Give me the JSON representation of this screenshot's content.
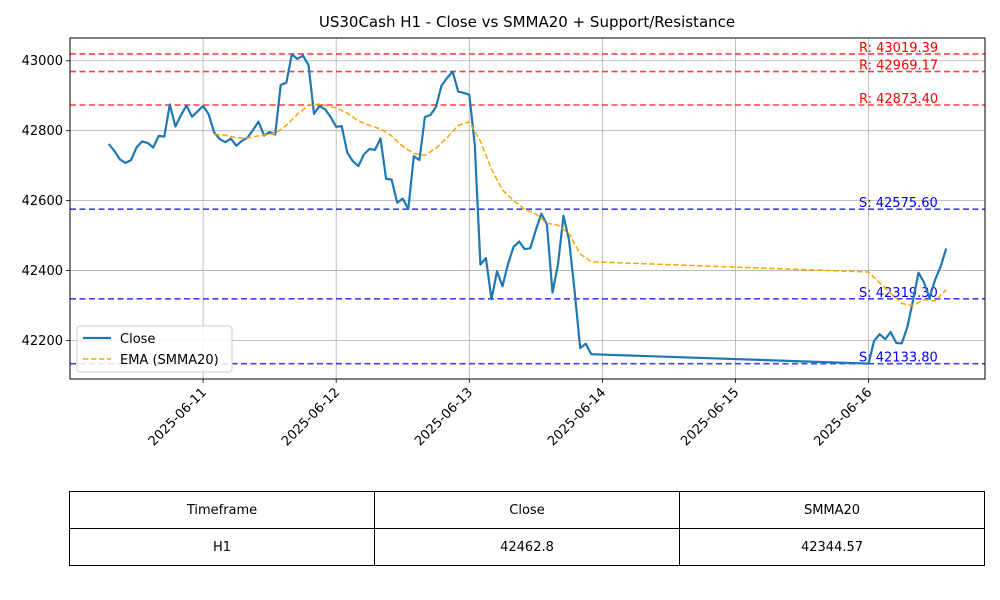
{
  "chart_data": {
    "type": "line",
    "title": "US30Cash H1 - Close vs SMMA20 + Support/Resistance",
    "xlabel": "",
    "ylabel": "",
    "x_ticks": [
      "2025-06-11",
      "2025-06-12",
      "2025-06-13",
      "2025-06-14",
      "2025-06-15",
      "2025-06-16"
    ],
    "y_ticks": [
      42200,
      42400,
      42600,
      42800,
      43000
    ],
    "xlim": [
      "2025-06-10 00:00",
      "2025-06-16 21:00"
    ],
    "ylim": [
      42090,
      43065
    ],
    "grid": true,
    "legend_position": "lower-left",
    "series": [
      {
        "name": "Close",
        "style": "solid",
        "color": "#1f77b4",
        "points": [
          [
            "2025-06-10 07:00",
            42762
          ],
          [
            "2025-06-10 08:00",
            42742
          ],
          [
            "2025-06-10 09:00",
            42718
          ],
          [
            "2025-06-10 10:00",
            42708
          ],
          [
            "2025-06-10 11:00",
            42716
          ],
          [
            "2025-06-10 12:00",
            42752
          ],
          [
            "2025-06-10 13:00",
            42769
          ],
          [
            "2025-06-10 14:00",
            42765
          ],
          [
            "2025-06-10 15:00",
            42752
          ],
          [
            "2025-06-10 16:00",
            42785
          ],
          [
            "2025-06-10 17:00",
            42783
          ],
          [
            "2025-06-10 18:00",
            42875
          ],
          [
            "2025-06-10 19:00",
            42812
          ],
          [
            "2025-06-10 20:00",
            42844
          ],
          [
            "2025-06-10 21:00",
            42872
          ],
          [
            "2025-06-10 22:00",
            42840
          ],
          [
            "2025-06-10 23:00",
            42855
          ],
          [
            "2025-06-11 00:00",
            42871
          ],
          [
            "2025-06-11 01:00",
            42847
          ],
          [
            "2025-06-11 02:00",
            42795
          ],
          [
            "2025-06-11 03:00",
            42776
          ],
          [
            "2025-06-11 04:00",
            42767
          ],
          [
            "2025-06-11 05:00",
            42777
          ],
          [
            "2025-06-11 06:00",
            42757
          ],
          [
            "2025-06-11 07:00",
            42771
          ],
          [
            "2025-06-11 08:00",
            42780
          ],
          [
            "2025-06-11 09:00",
            42802
          ],
          [
            "2025-06-11 10:00",
            42826
          ],
          [
            "2025-06-11 11:00",
            42786
          ],
          [
            "2025-06-11 12:00",
            42796
          ],
          [
            "2025-06-11 13:00",
            42789
          ],
          [
            "2025-06-11 14:00",
            42931
          ],
          [
            "2025-06-11 15:00",
            42937
          ],
          [
            "2025-06-11 16:00",
            43018
          ],
          [
            "2025-06-11 17:00",
            43005
          ],
          [
            "2025-06-11 18:00",
            43015
          ],
          [
            "2025-06-11 19:00",
            42988
          ],
          [
            "2025-06-11 20:00",
            42848
          ],
          [
            "2025-06-11 21:00",
            42871
          ],
          [
            "2025-06-11 22:00",
            42861
          ],
          [
            "2025-06-11 23:00",
            42839
          ],
          [
            "2025-06-12 00:00",
            42811
          ],
          [
            "2025-06-12 01:00",
            42813
          ],
          [
            "2025-06-12 02:00",
            42737
          ],
          [
            "2025-06-12 03:00",
            42713
          ],
          [
            "2025-06-12 04:00",
            42699
          ],
          [
            "2025-06-12 05:00",
            42732
          ],
          [
            "2025-06-12 06:00",
            42748
          ],
          [
            "2025-06-12 07:00",
            42745
          ],
          [
            "2025-06-12 08:00",
            42778
          ],
          [
            "2025-06-12 09:00",
            42662
          ],
          [
            "2025-06-12 10:00",
            42660
          ],
          [
            "2025-06-12 11:00",
            42594
          ],
          [
            "2025-06-12 12:00",
            42606
          ],
          [
            "2025-06-12 13:00",
            42576
          ],
          [
            "2025-06-12 14:00",
            42727
          ],
          [
            "2025-06-12 15:00",
            42716
          ],
          [
            "2025-06-12 16:00",
            42839
          ],
          [
            "2025-06-12 17:00",
            42845
          ],
          [
            "2025-06-12 18:00",
            42868
          ],
          [
            "2025-06-12 19:00",
            42929
          ],
          [
            "2025-06-12 20:00",
            42951
          ],
          [
            "2025-06-12 21:00",
            42969
          ],
          [
            "2025-06-12 22:00",
            42912
          ],
          [
            "2025-06-12 23:00",
            42908
          ],
          [
            "2025-06-13 00:00",
            42903
          ],
          [
            "2025-06-13 01:00",
            42759
          ],
          [
            "2025-06-13 02:00",
            42417
          ],
          [
            "2025-06-13 03:00",
            42436
          ],
          [
            "2025-06-13 04:00",
            42318
          ],
          [
            "2025-06-13 05:00",
            42398
          ],
          [
            "2025-06-13 06:00",
            42355
          ],
          [
            "2025-06-13 07:00",
            42420
          ],
          [
            "2025-06-13 08:00",
            42468
          ],
          [
            "2025-06-13 09:00",
            42483
          ],
          [
            "2025-06-13 10:00",
            42461
          ],
          [
            "2025-06-13 11:00",
            42464
          ],
          [
            "2025-06-13 12:00",
            42516
          ],
          [
            "2025-06-13 13:00",
            42563
          ],
          [
            "2025-06-13 14:00",
            42532
          ],
          [
            "2025-06-13 15:00",
            42337
          ],
          [
            "2025-06-13 16:00",
            42418
          ],
          [
            "2025-06-13 17:00",
            42557
          ],
          [
            "2025-06-13 18:00",
            42486
          ],
          [
            "2025-06-13 19:00",
            42342
          ],
          [
            "2025-06-13 20:00",
            42178
          ],
          [
            "2025-06-13 21:00",
            42191
          ],
          [
            "2025-06-13 22:00",
            42161
          ],
          [
            "2025-06-16 00:00",
            42134
          ],
          [
            "2025-06-16 01:00",
            42199
          ],
          [
            "2025-06-16 02:00",
            42218
          ],
          [
            "2025-06-16 03:00",
            42204
          ],
          [
            "2025-06-16 04:00",
            42224
          ],
          [
            "2025-06-16 05:00",
            42193
          ],
          [
            "2025-06-16 06:00",
            42192
          ],
          [
            "2025-06-16 07:00",
            42239
          ],
          [
            "2025-06-16 08:00",
            42313
          ],
          [
            "2025-06-16 09:00",
            42394
          ],
          [
            "2025-06-16 10:00",
            42366
          ],
          [
            "2025-06-16 11:00",
            42322
          ],
          [
            "2025-06-16 12:00",
            42374
          ],
          [
            "2025-06-16 13:00",
            42411
          ],
          [
            "2025-06-16 14:00",
            42463
          ]
        ]
      },
      {
        "name": "EMA (SMMA20)",
        "style": "dashed",
        "color": "#ffa500",
        "points": [
          [
            "2025-06-11 02:00",
            42790
          ],
          [
            "2025-06-11 04:00",
            42787
          ],
          [
            "2025-06-11 06:00",
            42780
          ],
          [
            "2025-06-11 08:00",
            42779
          ],
          [
            "2025-06-11 10:00",
            42785
          ],
          [
            "2025-06-11 13:00",
            42792
          ],
          [
            "2025-06-11 15:00",
            42815
          ],
          [
            "2025-06-11 17:00",
            42847
          ],
          [
            "2025-06-11 19:00",
            42872
          ],
          [
            "2025-06-11 21:00",
            42876
          ],
          [
            "2025-06-12 00:00",
            42865
          ],
          [
            "2025-06-12 02:00",
            42850
          ],
          [
            "2025-06-12 04:00",
            42828
          ],
          [
            "2025-06-12 06:00",
            42815
          ],
          [
            "2025-06-12 08:00",
            42805
          ],
          [
            "2025-06-12 10:00",
            42785
          ],
          [
            "2025-06-12 12:00",
            42755
          ],
          [
            "2025-06-12 14:00",
            42735
          ],
          [
            "2025-06-12 16:00",
            42730
          ],
          [
            "2025-06-12 18:00",
            42750
          ],
          [
            "2025-06-12 20:00",
            42780
          ],
          [
            "2025-06-12 22:00",
            42815
          ],
          [
            "2025-06-13 00:00",
            42825
          ],
          [
            "2025-06-13 02:00",
            42770
          ],
          [
            "2025-06-13 04:00",
            42690
          ],
          [
            "2025-06-13 06:00",
            42630
          ],
          [
            "2025-06-13 08:00",
            42600
          ],
          [
            "2025-06-13 10:00",
            42575
          ],
          [
            "2025-06-13 12:00",
            42562
          ],
          [
            "2025-06-13 14:00",
            42535
          ],
          [
            "2025-06-13 16:00",
            42530
          ],
          [
            "2025-06-13 18:00",
            42505
          ],
          [
            "2025-06-13 20:00",
            42448
          ],
          [
            "2025-06-13 22:00",
            42425
          ],
          [
            "2025-06-16 00:00",
            42396
          ],
          [
            "2025-06-16 02:00",
            42365
          ],
          [
            "2025-06-16 04:00",
            42335
          ],
          [
            "2025-06-16 06:00",
            42306
          ],
          [
            "2025-06-16 08:00",
            42300
          ],
          [
            "2025-06-16 10:00",
            42317
          ],
          [
            "2025-06-16 12:00",
            42313
          ],
          [
            "2025-06-16 14:00",
            42345
          ]
        ]
      }
    ],
    "levels": [
      {
        "kind": "resistance",
        "value": 43019.39,
        "label": "R: 43019.39",
        "color": "#ff0000"
      },
      {
        "kind": "resistance",
        "value": 42969.17,
        "label": "R: 42969.17",
        "color": "#ff0000"
      },
      {
        "kind": "resistance",
        "value": 42873.4,
        "label": "R: 42873.40",
        "color": "#ff0000"
      },
      {
        "kind": "support",
        "value": 42575.6,
        "label": "S: 42575.60",
        "color": "#0000ff"
      },
      {
        "kind": "support",
        "value": 42319.3,
        "label": "S: 42319.30",
        "color": "#0000ff"
      },
      {
        "kind": "support",
        "value": 42133.8,
        "label": "S: 42133.80",
        "color": "#0000ff"
      }
    ]
  },
  "table": {
    "headers": [
      "Timeframe",
      "Close",
      "SMMA20"
    ],
    "row": [
      "H1",
      "42462.8",
      "42344.57"
    ]
  }
}
